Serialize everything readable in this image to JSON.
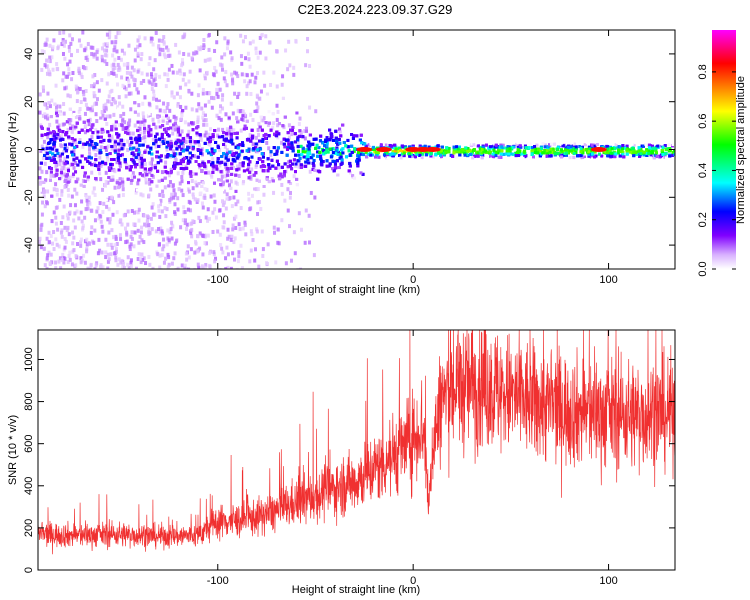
{
  "title": "C2E3.2024.223.09.37.G29",
  "chart_data": [
    {
      "type": "heatmap",
      "xlabel": "Height of straight line (km)",
      "ylabel": "Frequency (Hz)",
      "xlim": [
        -192,
        134
      ],
      "ylim": [
        -50,
        50
      ],
      "xticks": [
        -100,
        0,
        100
      ],
      "yticks": [
        -40,
        -20,
        0,
        20,
        40
      ],
      "colorbar": {
        "label": "Normalized spectral amplitude",
        "range": [
          0,
          0.97
        ],
        "ticks": [
          0.0,
          0.2,
          0.4,
          0.6,
          0.8
        ],
        "colormap": [
          "#ffffff",
          "#d8b0ff",
          "#8000ff",
          "#0000ff",
          "#00ffff",
          "#00ff00",
          "#ffff00",
          "#ff8000",
          "#ff0000",
          "#ff00ff"
        ]
      },
      "features": {
        "noisy_region_x": [
          -192,
          -60
        ],
        "line_center_hz": 0,
        "strong_points_x": [
          -25,
          -15,
          0,
          5,
          10,
          95
        ]
      }
    },
    {
      "type": "line",
      "xlabel": "Height of straight line (km)",
      "ylabel": "SNR (10 * v/v)",
      "xlim": [
        -192,
        134
      ],
      "ylim": [
        0,
        1140
      ],
      "xticks": [
        -100,
        0,
        100
      ],
      "yticks": [
        0,
        200,
        400,
        600,
        800,
        1000
      ],
      "color": "#f03030",
      "series": [
        {
          "x": [
            -192,
            -170,
            -150,
            -130,
            -110,
            -100,
            -90,
            -80,
            -70,
            -60,
            -50,
            -40,
            -30,
            -20,
            -10,
            0,
            5,
            8,
            10,
            15,
            20,
            30,
            40,
            60,
            80,
            100,
            120,
            134
          ],
          "y": [
            170,
            165,
            170,
            160,
            165,
            230,
            235,
            250,
            280,
            320,
            350,
            390,
            420,
            480,
            550,
            620,
            700,
            300,
            600,
            820,
            860,
            880,
            860,
            800,
            760,
            740,
            740,
            750
          ]
        }
      ]
    }
  ]
}
